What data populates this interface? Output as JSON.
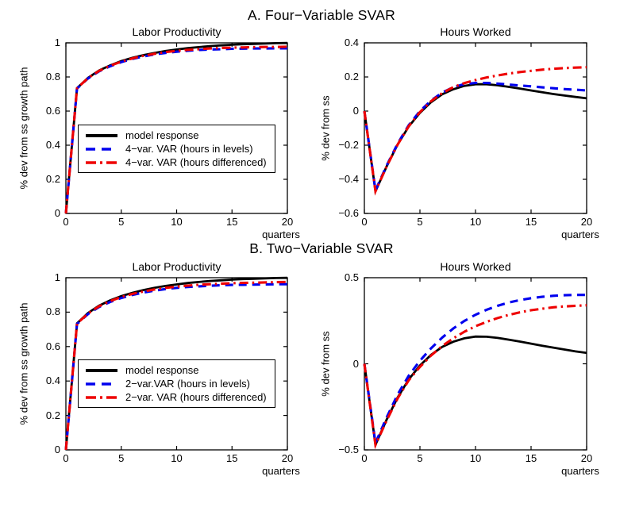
{
  "titles": {
    "a": "A. Four−Variable SVAR",
    "b": "B. Two−Variable SVAR"
  },
  "colors": {
    "model": "#000000",
    "levels": "#0000ee",
    "differenced": "#ee0000"
  },
  "chart_data": [
    {
      "type": "line",
      "panel": "A",
      "title": "Labor Productivity",
      "xlabel": "quarters",
      "ylabel": "% dev from ss growth path",
      "xlim": [
        0,
        20
      ],
      "ylim": [
        0,
        1
      ],
      "xticks": [
        0,
        5,
        10,
        15,
        20
      ],
      "xtick_labels": [
        "0",
        "5",
        "10",
        "15",
        "20"
      ],
      "yticks": [
        0,
        0.2,
        0.4,
        0.6,
        0.8,
        1
      ],
      "ytick_labels": [
        "0",
        "0.2",
        "0.4",
        "0.6",
        "0.8",
        "1"
      ],
      "grid": false,
      "legend_visible": true,
      "x": [
        0,
        1,
        2,
        3,
        4,
        5,
        6,
        7,
        8,
        9,
        10,
        11,
        12,
        13,
        14,
        15,
        16,
        17,
        18,
        19,
        20
      ],
      "series": [
        {
          "name": "model response",
          "style": "solid",
          "color": "#000000",
          "values": [
            0,
            0.735,
            0.795,
            0.838,
            0.868,
            0.893,
            0.912,
            0.928,
            0.941,
            0.952,
            0.961,
            0.969,
            0.975,
            0.981,
            0.985,
            0.989,
            0.992,
            0.994,
            0.996,
            0.998,
            0.999
          ]
        },
        {
          "name": "4−var. VAR (hours in levels)",
          "style": "dashed",
          "color": "#0000ee",
          "values": [
            0,
            0.732,
            0.791,
            0.833,
            0.863,
            0.887,
            0.906,
            0.92,
            0.932,
            0.941,
            0.948,
            0.954,
            0.958,
            0.961,
            0.963,
            0.965,
            0.966,
            0.967,
            0.967,
            0.968,
            0.968
          ]
        },
        {
          "name": "4−var. VAR (hours differenced)",
          "style": "dashdot",
          "color": "#ee0000",
          "values": [
            0,
            0.734,
            0.793,
            0.836,
            0.866,
            0.89,
            0.909,
            0.924,
            0.936,
            0.946,
            0.953,
            0.959,
            0.963,
            0.967,
            0.97,
            0.972,
            0.973,
            0.975,
            0.976,
            0.976,
            0.977
          ]
        }
      ]
    },
    {
      "type": "line",
      "panel": "A",
      "title": "Hours Worked",
      "xlabel": "quarters",
      "ylabel": "% dev from ss",
      "xlim": [
        0,
        20
      ],
      "ylim": [
        -0.6,
        0.4
      ],
      "xticks": [
        0,
        5,
        10,
        15,
        20
      ],
      "xtick_labels": [
        "0",
        "5",
        "10",
        "15",
        "20"
      ],
      "yticks": [
        -0.6,
        -0.4,
        -0.2,
        0,
        0.2,
        0.4
      ],
      "ytick_labels": [
        "−0.6",
        "−0.4",
        "−0.2",
        "0",
        "0.2",
        "0.4"
      ],
      "grid": false,
      "legend_visible": false,
      "x": [
        0,
        1,
        2,
        3,
        4,
        5,
        6,
        7,
        8,
        9,
        10,
        11,
        12,
        13,
        14,
        15,
        16,
        17,
        18,
        19,
        20
      ],
      "series": [
        {
          "name": "model response",
          "style": "solid",
          "color": "#000000",
          "values": [
            0,
            -0.47,
            -0.325,
            -0.195,
            -0.09,
            -0.01,
            0.052,
            0.098,
            0.128,
            0.148,
            0.157,
            0.157,
            0.151,
            0.142,
            0.132,
            0.121,
            0.11,
            0.1,
            0.091,
            0.083,
            0.075
          ]
        },
        {
          "name": "4−var. VAR (hours in levels)",
          "style": "dashed",
          "color": "#0000ee",
          "values": [
            0,
            -0.465,
            -0.32,
            -0.19,
            -0.082,
            0.0,
            0.062,
            0.108,
            0.14,
            0.158,
            0.165,
            0.165,
            0.161,
            0.156,
            0.15,
            0.145,
            0.139,
            0.134,
            0.129,
            0.125,
            0.121
          ]
        },
        {
          "name": "4−var. VAR (hours differenced)",
          "style": "dashdot",
          "color": "#ee0000",
          "values": [
            0,
            -0.47,
            -0.325,
            -0.196,
            -0.088,
            -0.006,
            0.058,
            0.105,
            0.14,
            0.164,
            0.182,
            0.197,
            0.209,
            0.22,
            0.229,
            0.236,
            0.243,
            0.248,
            0.252,
            0.255,
            0.257
          ]
        }
      ]
    },
    {
      "type": "line",
      "panel": "B",
      "title": "Labor Productivity",
      "xlabel": "quarters",
      "ylabel": "% dev from ss growth path",
      "xlim": [
        0,
        20
      ],
      "ylim": [
        0,
        1
      ],
      "xticks": [
        0,
        5,
        10,
        15,
        20
      ],
      "xtick_labels": [
        "0",
        "5",
        "10",
        "15",
        "20"
      ],
      "yticks": [
        0,
        0.2,
        0.4,
        0.6,
        0.8,
        1
      ],
      "ytick_labels": [
        "0",
        "0.2",
        "0.4",
        "0.6",
        "0.8",
        "1"
      ],
      "grid": false,
      "legend_visible": true,
      "x": [
        0,
        1,
        2,
        3,
        4,
        5,
        6,
        7,
        8,
        9,
        10,
        11,
        12,
        13,
        14,
        15,
        16,
        17,
        18,
        19,
        20
      ],
      "series": [
        {
          "name": "model response",
          "style": "solid",
          "color": "#000000",
          "values": [
            0,
            0.735,
            0.795,
            0.838,
            0.868,
            0.893,
            0.912,
            0.928,
            0.941,
            0.952,
            0.961,
            0.969,
            0.975,
            0.981,
            0.985,
            0.989,
            0.992,
            0.994,
            0.996,
            0.998,
            0.999
          ]
        },
        {
          "name": "2−var.VAR (hours in levels)",
          "style": "dashed",
          "color": "#0000ee",
          "values": [
            0,
            0.731,
            0.789,
            0.83,
            0.859,
            0.882,
            0.9,
            0.914,
            0.925,
            0.934,
            0.941,
            0.946,
            0.95,
            0.953,
            0.956,
            0.958,
            0.959,
            0.96,
            0.961,
            0.962,
            0.962
          ]
        },
        {
          "name": "2−var. VAR (hours differenced)",
          "style": "dashdot",
          "color": "#ee0000",
          "values": [
            0,
            0.733,
            0.792,
            0.834,
            0.864,
            0.888,
            0.906,
            0.92,
            0.932,
            0.941,
            0.948,
            0.954,
            0.959,
            0.962,
            0.965,
            0.968,
            0.97,
            0.971,
            0.973,
            0.974,
            0.975
          ]
        }
      ]
    },
    {
      "type": "line",
      "panel": "B",
      "title": "Hours Worked",
      "xlabel": "quarters",
      "ylabel": "% dev from ss",
      "xlim": [
        0,
        20
      ],
      "ylim": [
        -0.5,
        0.5
      ],
      "xticks": [
        0,
        5,
        10,
        15,
        20
      ],
      "xtick_labels": [
        "0",
        "5",
        "10",
        "15",
        "20"
      ],
      "yticks": [
        -0.5,
        0,
        0.5
      ],
      "ytick_labels": [
        "−0.5",
        "0",
        "0.5"
      ],
      "grid": false,
      "legend_visible": false,
      "x": [
        0,
        1,
        2,
        3,
        4,
        5,
        6,
        7,
        8,
        9,
        10,
        11,
        12,
        13,
        14,
        15,
        16,
        17,
        18,
        19,
        20
      ],
      "series": [
        {
          "name": "model response",
          "style": "solid",
          "color": "#000000",
          "values": [
            0,
            -0.47,
            -0.325,
            -0.195,
            -0.09,
            -0.01,
            0.052,
            0.098,
            0.128,
            0.148,
            0.158,
            0.157,
            0.15,
            0.14,
            0.129,
            0.117,
            0.105,
            0.094,
            0.083,
            0.072,
            0.063
          ]
        },
        {
          "name": "2−var.VAR (hours in levels)",
          "style": "dashed",
          "color": "#0000ee",
          "values": [
            0,
            -0.46,
            -0.312,
            -0.178,
            -0.068,
            0.018,
            0.09,
            0.152,
            0.205,
            0.249,
            0.285,
            0.314,
            0.337,
            0.356,
            0.37,
            0.381,
            0.389,
            0.395,
            0.398,
            0.4,
            0.4
          ]
        },
        {
          "name": "2−var. VAR (hours differenced)",
          "style": "dashdot",
          "color": "#ee0000",
          "values": [
            0,
            -0.472,
            -0.33,
            -0.2,
            -0.095,
            -0.018,
            0.048,
            0.103,
            0.148,
            0.186,
            0.218,
            0.244,
            0.266,
            0.284,
            0.299,
            0.311,
            0.32,
            0.328,
            0.333,
            0.337,
            0.34
          ]
        }
      ]
    }
  ]
}
